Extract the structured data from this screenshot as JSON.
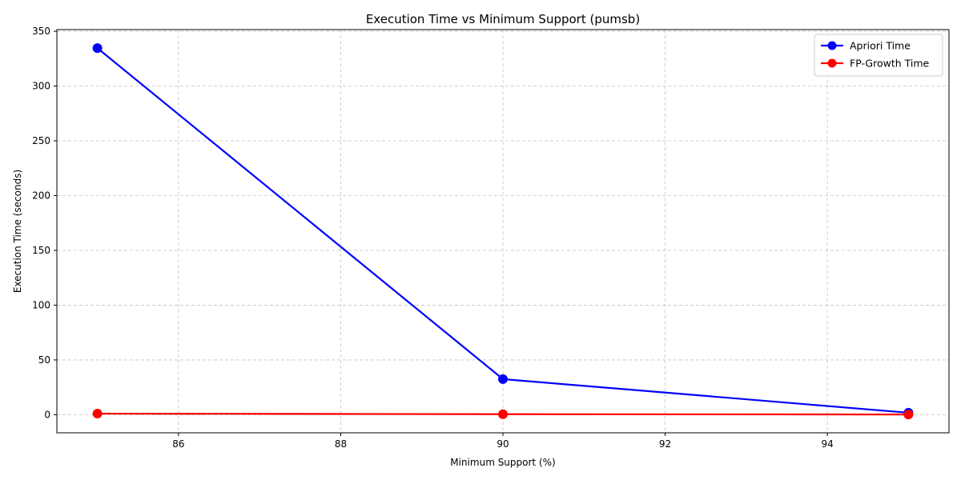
{
  "chart_data": {
    "type": "line",
    "title": "Execution Time vs Minimum Support (pumsb)",
    "xlabel": "Minimum Support (%)",
    "ylabel": "Execution Time (seconds)",
    "x": [
      85,
      90,
      95
    ],
    "xlim": [
      84.5,
      95.5
    ],
    "ylim": [
      -16.5,
      351.5
    ],
    "xticks": [
      86,
      88,
      90,
      92,
      94
    ],
    "yticks": [
      0,
      50,
      100,
      150,
      200,
      250,
      300,
      350
    ],
    "grid": true,
    "legend_position": "top-right",
    "series": [
      {
        "name": "Apriori Time",
        "values": [
          334.6,
          32.5,
          1.8
        ],
        "color": "#0000ff"
      },
      {
        "name": "FP-Growth Time",
        "values": [
          1.0,
          0.5,
          0.2
        ],
        "color": "#ff0000"
      }
    ]
  }
}
